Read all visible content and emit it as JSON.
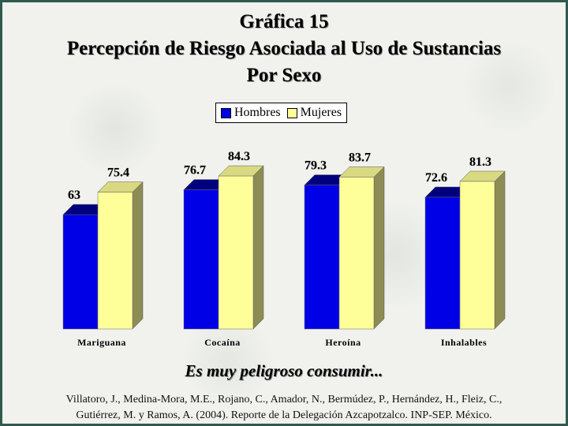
{
  "title_lines": [
    "Gráfica 15",
    "Percepción de Riesgo Asociada al Uso de Sustancias",
    "Por Sexo"
  ],
  "subtitle": "Es muy peligroso consumir...",
  "citation_lines": [
    "Villatoro, J., Medina-Mora, M.E., Rojano, C., Amador, N., Bermúdez, P., Hernández, H., Fleiz, C.,",
    "Gutiérrez, M. y Ramos, A. (2004). Reporte de la Delegación Azcapotzalco. INP-SEP. México."
  ],
  "legend_position": "top-center",
  "colors": {
    "Hombres": "#0000e6",
    "Mujeres": "#ffff99"
  },
  "chart_data": {
    "type": "bar",
    "title": "Gráfica 15 Percepción de Riesgo Asociada al Uso de Sustancias Por Sexo",
    "categories": [
      "Mariguana",
      "Cocaína",
      "Heroína",
      "Inhalables"
    ],
    "series": [
      {
        "name": "Hombres",
        "values": [
          63,
          76.7,
          79.3,
          72.6
        ]
      },
      {
        "name": "Mujeres",
        "values": [
          75.4,
          84.3,
          83.7,
          81.3
        ]
      }
    ],
    "ylim": [
      0,
      100
    ],
    "grid": false,
    "xlabel": "",
    "ylabel": ""
  }
}
